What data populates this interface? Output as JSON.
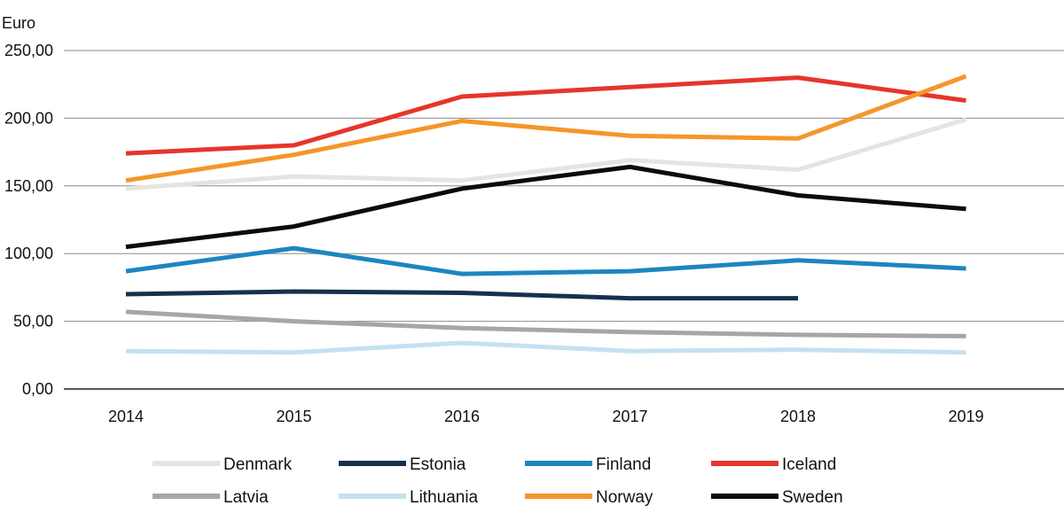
{
  "chart_data": {
    "type": "line",
    "ylabel": "Euro",
    "ylim": [
      0,
      250
    ],
    "yticks": [
      "0,00",
      "50,00",
      "100,00",
      "150,00",
      "200,00",
      "250,00"
    ],
    "ytick_values": [
      0,
      50,
      100,
      150,
      200,
      250
    ],
    "categories": [
      "2014",
      "2015",
      "2016",
      "2017",
      "2018",
      "2019"
    ],
    "grid": true,
    "legend_position": "bottom",
    "series": [
      {
        "name": "Denmark",
        "color": "#e6e4e0",
        "values": [
          148,
          157,
          154,
          169,
          162,
          199
        ]
      },
      {
        "name": "Estonia",
        "color": "#16304f",
        "values": [
          70,
          72,
          71,
          67,
          67,
          null
        ]
      },
      {
        "name": "Finland",
        "color": "#1c86c0",
        "values": [
          87,
          104,
          85,
          87,
          95,
          89
        ]
      },
      {
        "name": "Iceland",
        "color": "#e6352b",
        "values": [
          174,
          180,
          216,
          223,
          230,
          213
        ]
      },
      {
        "name": "Latvia",
        "color": "#a8a6a4",
        "values": [
          57,
          50,
          45,
          42,
          40,
          39
        ]
      },
      {
        "name": "Lithuania",
        "color": "#c4e1f1",
        "values": [
          28,
          27,
          34,
          28,
          29,
          27
        ]
      },
      {
        "name": "Norway",
        "color": "#f5962a",
        "values": [
          154,
          173,
          198,
          187,
          185,
          231
        ]
      },
      {
        "name": "Sweden",
        "color": "#0b0b0b",
        "values": [
          105,
          120,
          148,
          164,
          143,
          133
        ]
      }
    ]
  }
}
